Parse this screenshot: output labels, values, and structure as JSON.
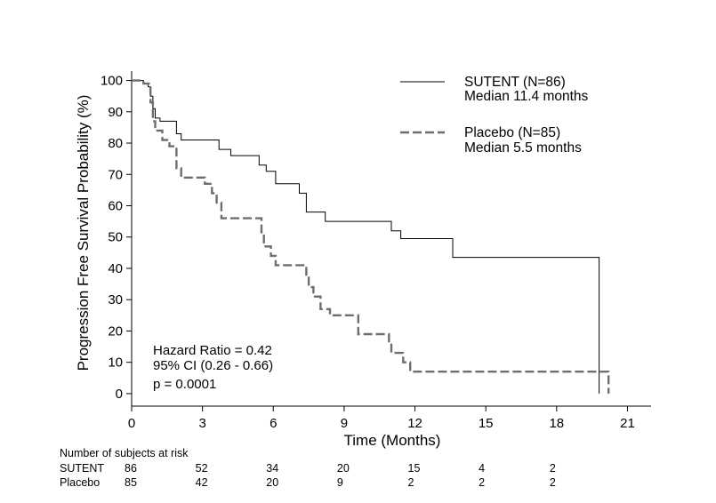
{
  "chart_data": {
    "type": "line",
    "title": "",
    "xlabel": "Time (Months)",
    "ylabel": "Progression Free Survival Probability (%)",
    "xlim": [
      0,
      22
    ],
    "ylim": [
      -4,
      103
    ],
    "x_ticks": [
      0,
      3,
      6,
      9,
      12,
      15,
      18,
      21
    ],
    "y_ticks": [
      0,
      10,
      20,
      30,
      40,
      50,
      60,
      70,
      80,
      90,
      100
    ],
    "grid": false,
    "legend_position": "top-right",
    "series": [
      {
        "name": "SUTENT (N=86)",
        "subtitle": "Median 11.4 months",
        "style": "solid",
        "color": "#000000",
        "points": [
          [
            0,
            100
          ],
          [
            0.5,
            100
          ],
          [
            0.5,
            99
          ],
          [
            0.7,
            99
          ],
          [
            0.7,
            98
          ],
          [
            0.8,
            98
          ],
          [
            0.8,
            95
          ],
          [
            0.9,
            95
          ],
          [
            0.9,
            91
          ],
          [
            1.0,
            91
          ],
          [
            1.0,
            88
          ],
          [
            1.2,
            88
          ],
          [
            1.2,
            87
          ],
          [
            1.9,
            87
          ],
          [
            1.9,
            83
          ],
          [
            2.1,
            83
          ],
          [
            2.1,
            81
          ],
          [
            3.7,
            81
          ],
          [
            3.7,
            78
          ],
          [
            4.2,
            78
          ],
          [
            4.2,
            76
          ],
          [
            5.4,
            76
          ],
          [
            5.4,
            73
          ],
          [
            5.7,
            73
          ],
          [
            5.7,
            71
          ],
          [
            6.1,
            71
          ],
          [
            6.1,
            67
          ],
          [
            7.1,
            67
          ],
          [
            7.1,
            64
          ],
          [
            7.4,
            64
          ],
          [
            7.4,
            58
          ],
          [
            8.2,
            58
          ],
          [
            8.2,
            55
          ],
          [
            11.0,
            55
          ],
          [
            11.0,
            52
          ],
          [
            11.4,
            52
          ],
          [
            11.4,
            49.5
          ],
          [
            13.6,
            49.5
          ],
          [
            13.6,
            43.5
          ],
          [
            19.8,
            43.5
          ],
          [
            19.8,
            0
          ]
        ]
      },
      {
        "name": "Placebo (N=85)",
        "subtitle": "Median 5.5 months",
        "style": "dashed",
        "color": "#6e6e6e",
        "points": [
          [
            0,
            100
          ],
          [
            0.5,
            100
          ],
          [
            0.5,
            99
          ],
          [
            0.8,
            99
          ],
          [
            0.8,
            93
          ],
          [
            0.9,
            93
          ],
          [
            0.9,
            87
          ],
          [
            1.0,
            87
          ],
          [
            1.0,
            84
          ],
          [
            1.3,
            84
          ],
          [
            1.3,
            81
          ],
          [
            1.6,
            81
          ],
          [
            1.6,
            79
          ],
          [
            1.9,
            79
          ],
          [
            1.9,
            72
          ],
          [
            2.1,
            72
          ],
          [
            2.1,
            69
          ],
          [
            3.1,
            69
          ],
          [
            3.1,
            67
          ],
          [
            3.4,
            67
          ],
          [
            3.4,
            64
          ],
          [
            3.6,
            64
          ],
          [
            3.6,
            61
          ],
          [
            3.8,
            61
          ],
          [
            3.8,
            56
          ],
          [
            5.5,
            56
          ],
          [
            5.5,
            51
          ],
          [
            5.6,
            51
          ],
          [
            5.6,
            47
          ],
          [
            5.9,
            47
          ],
          [
            5.9,
            44
          ],
          [
            6.1,
            44
          ],
          [
            6.1,
            41
          ],
          [
            7.4,
            41
          ],
          [
            7.4,
            37
          ],
          [
            7.5,
            37
          ],
          [
            7.5,
            34
          ],
          [
            7.7,
            34
          ],
          [
            7.7,
            31
          ],
          [
            8.0,
            31
          ],
          [
            8.0,
            27
          ],
          [
            8.4,
            27
          ],
          [
            8.4,
            25
          ],
          [
            9.6,
            25
          ],
          [
            9.6,
            19
          ],
          [
            10.9,
            19
          ],
          [
            10.9,
            16
          ],
          [
            11.0,
            16
          ],
          [
            11.0,
            13
          ],
          [
            11.5,
            13
          ],
          [
            11.5,
            10
          ],
          [
            11.8,
            10
          ],
          [
            11.8,
            7
          ],
          [
            20.2,
            7
          ],
          [
            20.2,
            0
          ]
        ]
      }
    ],
    "annotations": [
      "Hazard Ratio = 0.42",
      "95% CI (0.26 - 0.66)",
      "p = 0.0001"
    ],
    "risk_table": {
      "header": "Number of subjects at risk",
      "times": [
        0,
        3,
        6,
        9,
        12,
        15,
        18
      ],
      "rows": [
        {
          "label": "SUTENT",
          "counts": [
            "86",
            "52",
            "34",
            "20",
            "15",
            "4",
            "2"
          ]
        },
        {
          "label": "Placebo",
          "counts": [
            "85",
            "42",
            "20",
            "9",
            "2",
            "2",
            "2"
          ]
        }
      ]
    }
  }
}
